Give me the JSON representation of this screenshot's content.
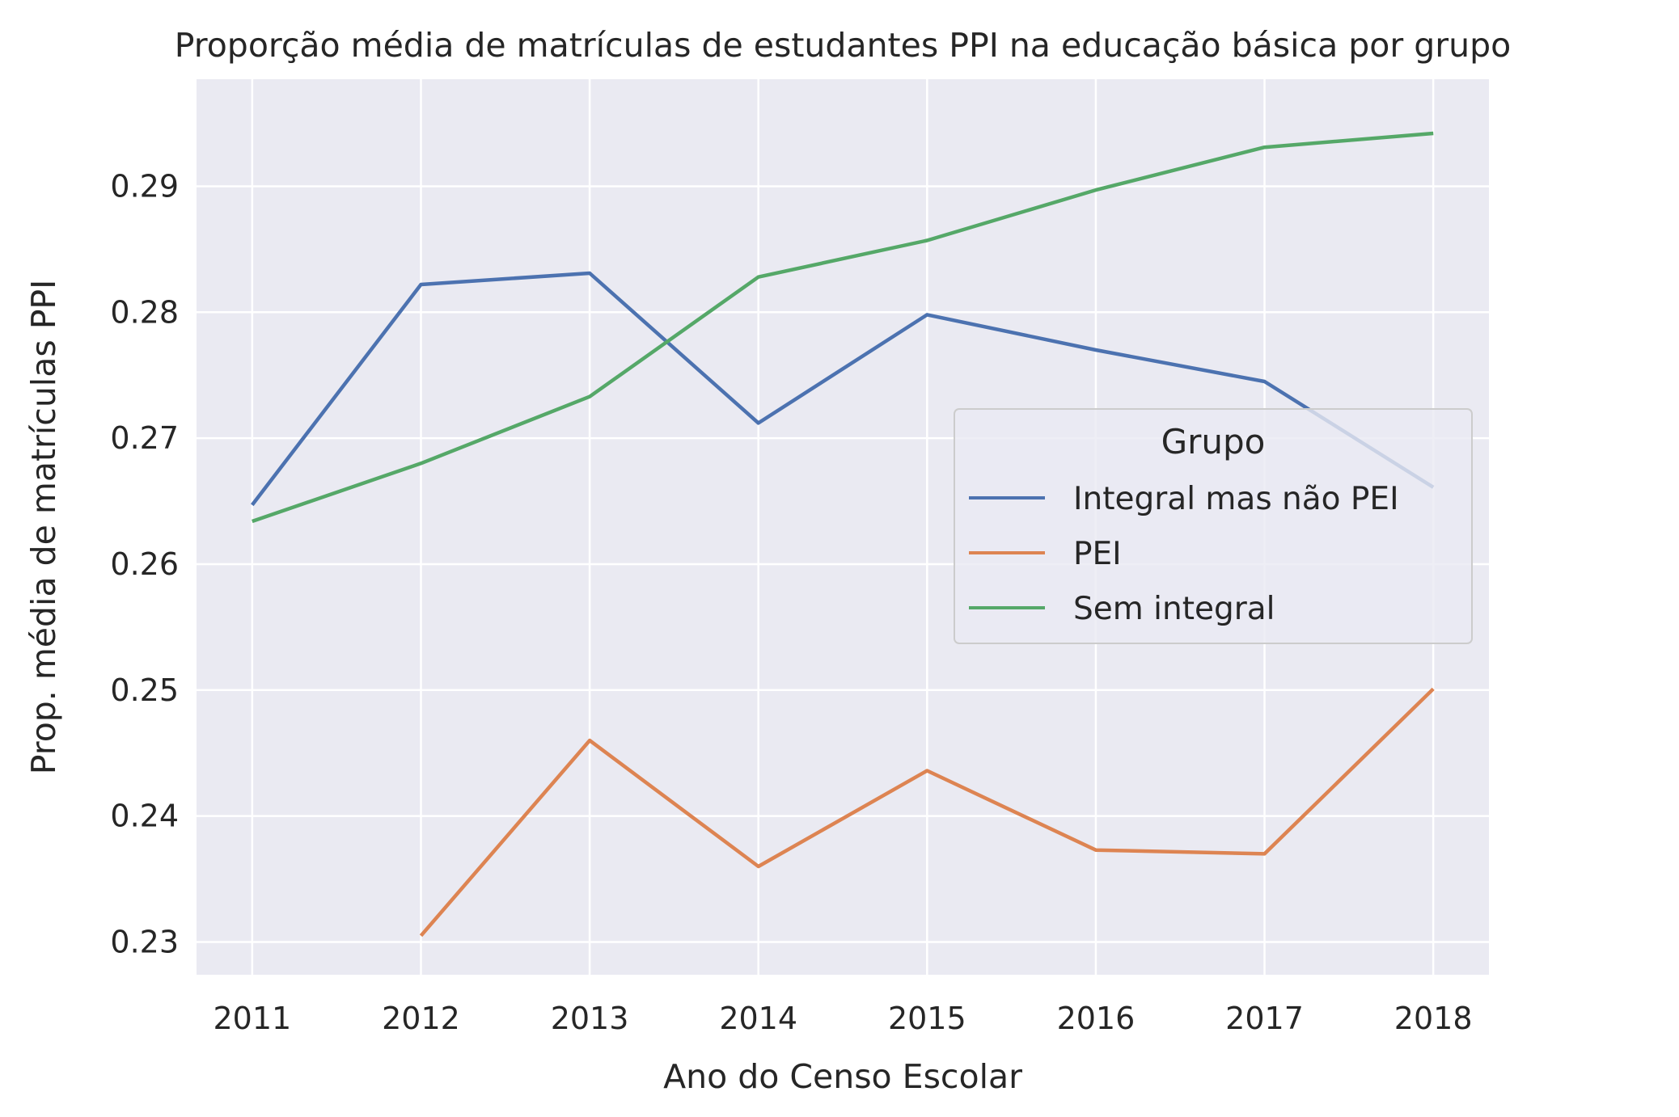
{
  "chart_data": {
    "type": "line",
    "title": "Proporção média de matrículas de estudantes PPI na educação básica por grupo",
    "xlabel": "Ano do Censo Escolar",
    "ylabel": "Prop. média de matrículas PPI",
    "x": [
      "2011",
      "2012",
      "2013",
      "2014",
      "2015",
      "2016",
      "2017",
      "2018"
    ],
    "xlim": [
      2010.67,
      2018.33
    ],
    "ylim": [
      0.2274,
      0.2985
    ],
    "yticks": [
      "0.23",
      "0.24",
      "0.25",
      "0.26",
      "0.27",
      "0.28",
      "0.29"
    ],
    "grid": true,
    "background": "#eaeaf2",
    "legend": {
      "title": "Grupo",
      "placement": "center-right"
    },
    "series": [
      {
        "name": "Integral mas não PEI",
        "color": "#4c72b0",
        "values": [
          0.2647,
          0.2822,
          0.2831,
          0.2712,
          0.2798,
          0.277,
          0.2745,
          0.2661
        ]
      },
      {
        "name": "PEI",
        "color": "#dd8452",
        "values": [
          null,
          0.2305,
          0.246,
          0.236,
          0.2436,
          0.2373,
          0.237,
          0.2501
        ]
      },
      {
        "name": "Sem integral",
        "color": "#55a868",
        "values": [
          0.2634,
          0.268,
          0.2733,
          0.2828,
          0.2857,
          0.2897,
          0.2931,
          0.2942
        ]
      }
    ]
  }
}
